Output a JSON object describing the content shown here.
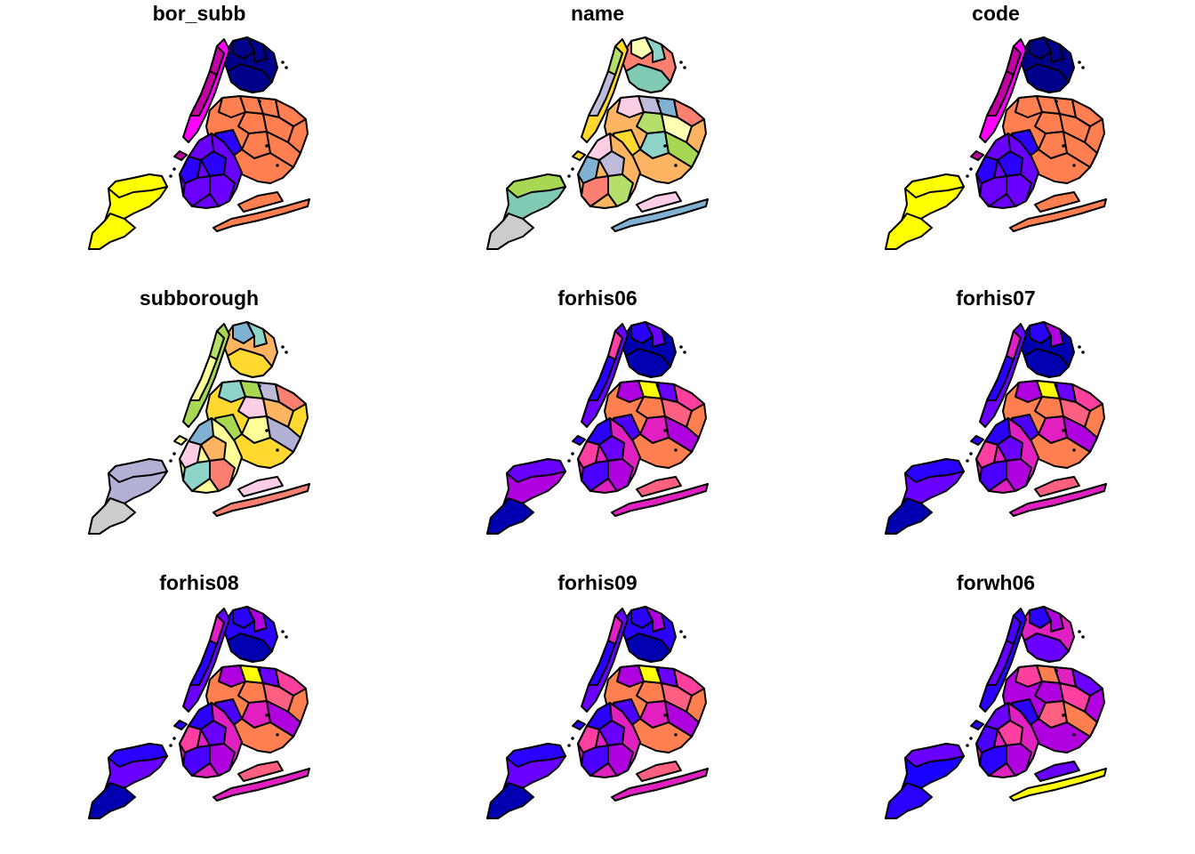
{
  "figure": {
    "layout": "3x3 small multiples of NYC sub-borough choropleth maps",
    "panels": [
      {
        "title": "bor_subb",
        "palette": [
          "#ffff00",
          "#2a00ff",
          "#6a00ff",
          "#ff7f50",
          "#c000a0",
          "#1a00c8",
          "#00008b",
          "#ff00ff"
        ]
      },
      {
        "title": "name",
        "palette": [
          "#cccccc",
          "#7fc9b5",
          "#a6d854",
          "#ffd92f",
          "#fdb462",
          "#fccde5",
          "#bebada",
          "#80b1d3",
          "#fb8072",
          "#b3de69",
          "#ffffb3",
          "#8dd3c7"
        ]
      },
      {
        "title": "code",
        "palette": [
          "#ffff00",
          "#2a00ff",
          "#6a00ff",
          "#ff7f50",
          "#c000a0",
          "#1a00c8",
          "#00008b",
          "#ff00ff"
        ]
      },
      {
        "title": "subborough",
        "palette": [
          "#cccccc",
          "#b3b0d6",
          "#a6d854",
          "#ffff99",
          "#80b1d3",
          "#fdb462",
          "#fccde5",
          "#8dd3c7",
          "#fb8072",
          "#bebada",
          "#b3de69",
          "#ffd92f"
        ]
      },
      {
        "title": "forhis06",
        "palette": [
          "#0000b0",
          "#2a00ff",
          "#6a00ff",
          "#b000e0",
          "#ff40a0",
          "#ff7f50",
          "#ffff00",
          "#e020c0",
          "#4b00ff",
          "#ff6080"
        ]
      },
      {
        "title": "forhis07",
        "palette": [
          "#0000b0",
          "#2a00ff",
          "#6a00ff",
          "#b000e0",
          "#ff40a0",
          "#ff7f50",
          "#ffff00",
          "#e020c0",
          "#4b00ff",
          "#ff6080"
        ]
      },
      {
        "title": "forhis08",
        "palette": [
          "#0000b0",
          "#2a00ff",
          "#6a00ff",
          "#b000e0",
          "#ff40a0",
          "#ff7f50",
          "#ffff00",
          "#e020c0",
          "#4b00ff",
          "#ff6080"
        ]
      },
      {
        "title": "forhis09",
        "palette": [
          "#0000b0",
          "#2a00ff",
          "#6a00ff",
          "#b000e0",
          "#ff40a0",
          "#ff7f50",
          "#ffff00",
          "#e020c0",
          "#4b00ff",
          "#ff6080"
        ]
      },
      {
        "title": "forwh06",
        "palette": [
          "#1a00ff",
          "#2a00ff",
          "#6a00ff",
          "#b000e0",
          "#ff40a0",
          "#ff7f50",
          "#ffff00",
          "#e020c0",
          "#4b00ff",
          "#ff6080"
        ]
      }
    ]
  }
}
